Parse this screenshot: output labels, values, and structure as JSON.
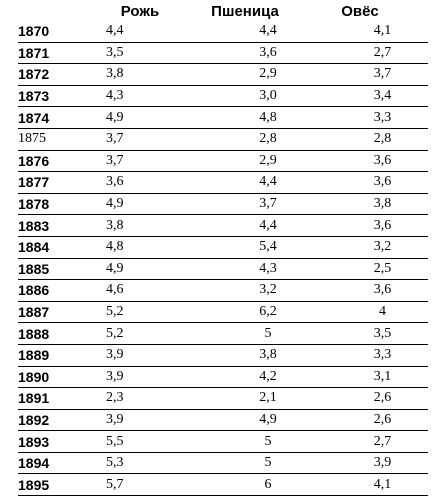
{
  "headers": {
    "rye": "Рожь",
    "wheat": "Пшеница",
    "oats": "Овёс"
  },
  "rows": [
    {
      "year": "1870",
      "rye": "4,4",
      "wheat": "4,4",
      "oats": "4,1"
    },
    {
      "year": "1871",
      "rye": "3,5",
      "wheat": "3,6",
      "oats": "2,7"
    },
    {
      "year": "1872",
      "rye": "3,8",
      "wheat": "2,9",
      "oats": "3,7"
    },
    {
      "year": "1873",
      "rye": "4,3",
      "wheat": "3,0",
      "oats": "3,4"
    },
    {
      "year": "1874",
      "rye": "4,9",
      "wheat": "4,8",
      "oats": "3,3"
    },
    {
      "year": "1875",
      "rye": "3,7",
      "wheat": "2,8",
      "oats": "2,8"
    },
    {
      "year": "1876",
      "rye": "3,7",
      "wheat": "2,9",
      "oats": "3,6"
    },
    {
      "year": "1877",
      "rye": "3,6",
      "wheat": "4,4",
      "oats": "3,6"
    },
    {
      "year": "1878",
      "rye": "4,9",
      "wheat": "3,7",
      "oats": "3,8"
    },
    {
      "year": "1883",
      "rye": "3,8",
      "wheat": "4,4",
      "oats": "3,6"
    },
    {
      "year": "1884",
      "rye": "4,8",
      "wheat": "5,4",
      "oats": "3,2"
    },
    {
      "year": "1885",
      "rye": "4,9",
      "wheat": "4,3",
      "oats": "2,5"
    },
    {
      "year": "1886",
      "rye": "4,6",
      "wheat": "3,2",
      "oats": "3,6"
    },
    {
      "year": "1887",
      "rye": "5,2",
      "wheat": "6,2",
      "oats": "4"
    },
    {
      "year": "1888",
      "rye": "5,2",
      "wheat": "5",
      "oats": "3,5"
    },
    {
      "year": "1889",
      "rye": "3,9",
      "wheat": "3,8",
      "oats": "3,3"
    },
    {
      "year": "1890",
      "rye": "3,9",
      "wheat": "4,2",
      "oats": "3,1"
    },
    {
      "year": "1891",
      "rye": "2,3",
      "wheat": "2,1",
      "oats": "2,6"
    },
    {
      "year": "1892",
      "rye": "3,9",
      "wheat": "4,9",
      "oats": "2,6"
    },
    {
      "year": "1893",
      "rye": "5,5",
      "wheat": "5",
      "oats": "2,7"
    },
    {
      "year": "1894",
      "rye": "5,3",
      "wheat": "5",
      "oats": "3,9"
    },
    {
      "year": "1895",
      "rye": "5,7",
      "wheat": "6",
      "oats": "4,1"
    }
  ]
}
